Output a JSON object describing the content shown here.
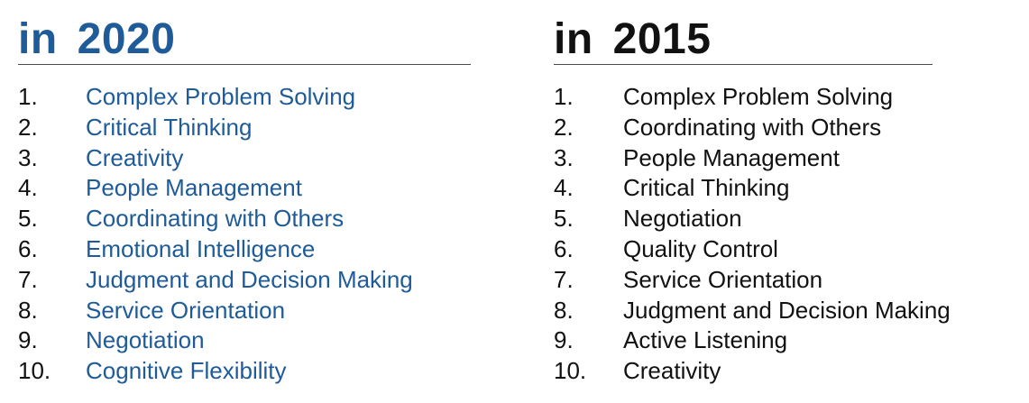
{
  "columns": [
    {
      "prefix": "in",
      "year": "2020",
      "skills": [
        {
          "rank": "1.",
          "name": "Complex Problem Solving"
        },
        {
          "rank": "2.",
          "name": "Critical Thinking"
        },
        {
          "rank": "3.",
          "name": "Creativity"
        },
        {
          "rank": "4.",
          "name": "People Management"
        },
        {
          "rank": "5.",
          "name": "Coordinating with Others"
        },
        {
          "rank": "6.",
          "name": "Emotional Intelligence"
        },
        {
          "rank": "7.",
          "name": "Judgment and Decision Making"
        },
        {
          "rank": "8.",
          "name": "Service Orientation"
        },
        {
          "rank": "9.",
          "name": "Negotiation"
        },
        {
          "rank": "10.",
          "name": "Cognitive Flexibility"
        }
      ]
    },
    {
      "prefix": "in",
      "year": "2015",
      "skills": [
        {
          "rank": "1.",
          "name": "Complex Problem Solving"
        },
        {
          "rank": "2.",
          "name": "Coordinating with Others"
        },
        {
          "rank": "3.",
          "name": "People Management"
        },
        {
          "rank": "4.",
          "name": "Critical Thinking"
        },
        {
          "rank": "5.",
          "name": "Negotiation"
        },
        {
          "rank": "6.",
          "name": "Quality Control"
        },
        {
          "rank": "7.",
          "name": "Service Orientation"
        },
        {
          "rank": "8.",
          "name": "Judgment and Decision Making"
        },
        {
          "rank": "9.",
          "name": "Active Listening"
        },
        {
          "rank": "10.",
          "name": "Creativity"
        }
      ]
    }
  ],
  "colors": {
    "accent_blue": "#1e5b98",
    "text_black": "#111111",
    "rule": "#4a4a4a"
  }
}
